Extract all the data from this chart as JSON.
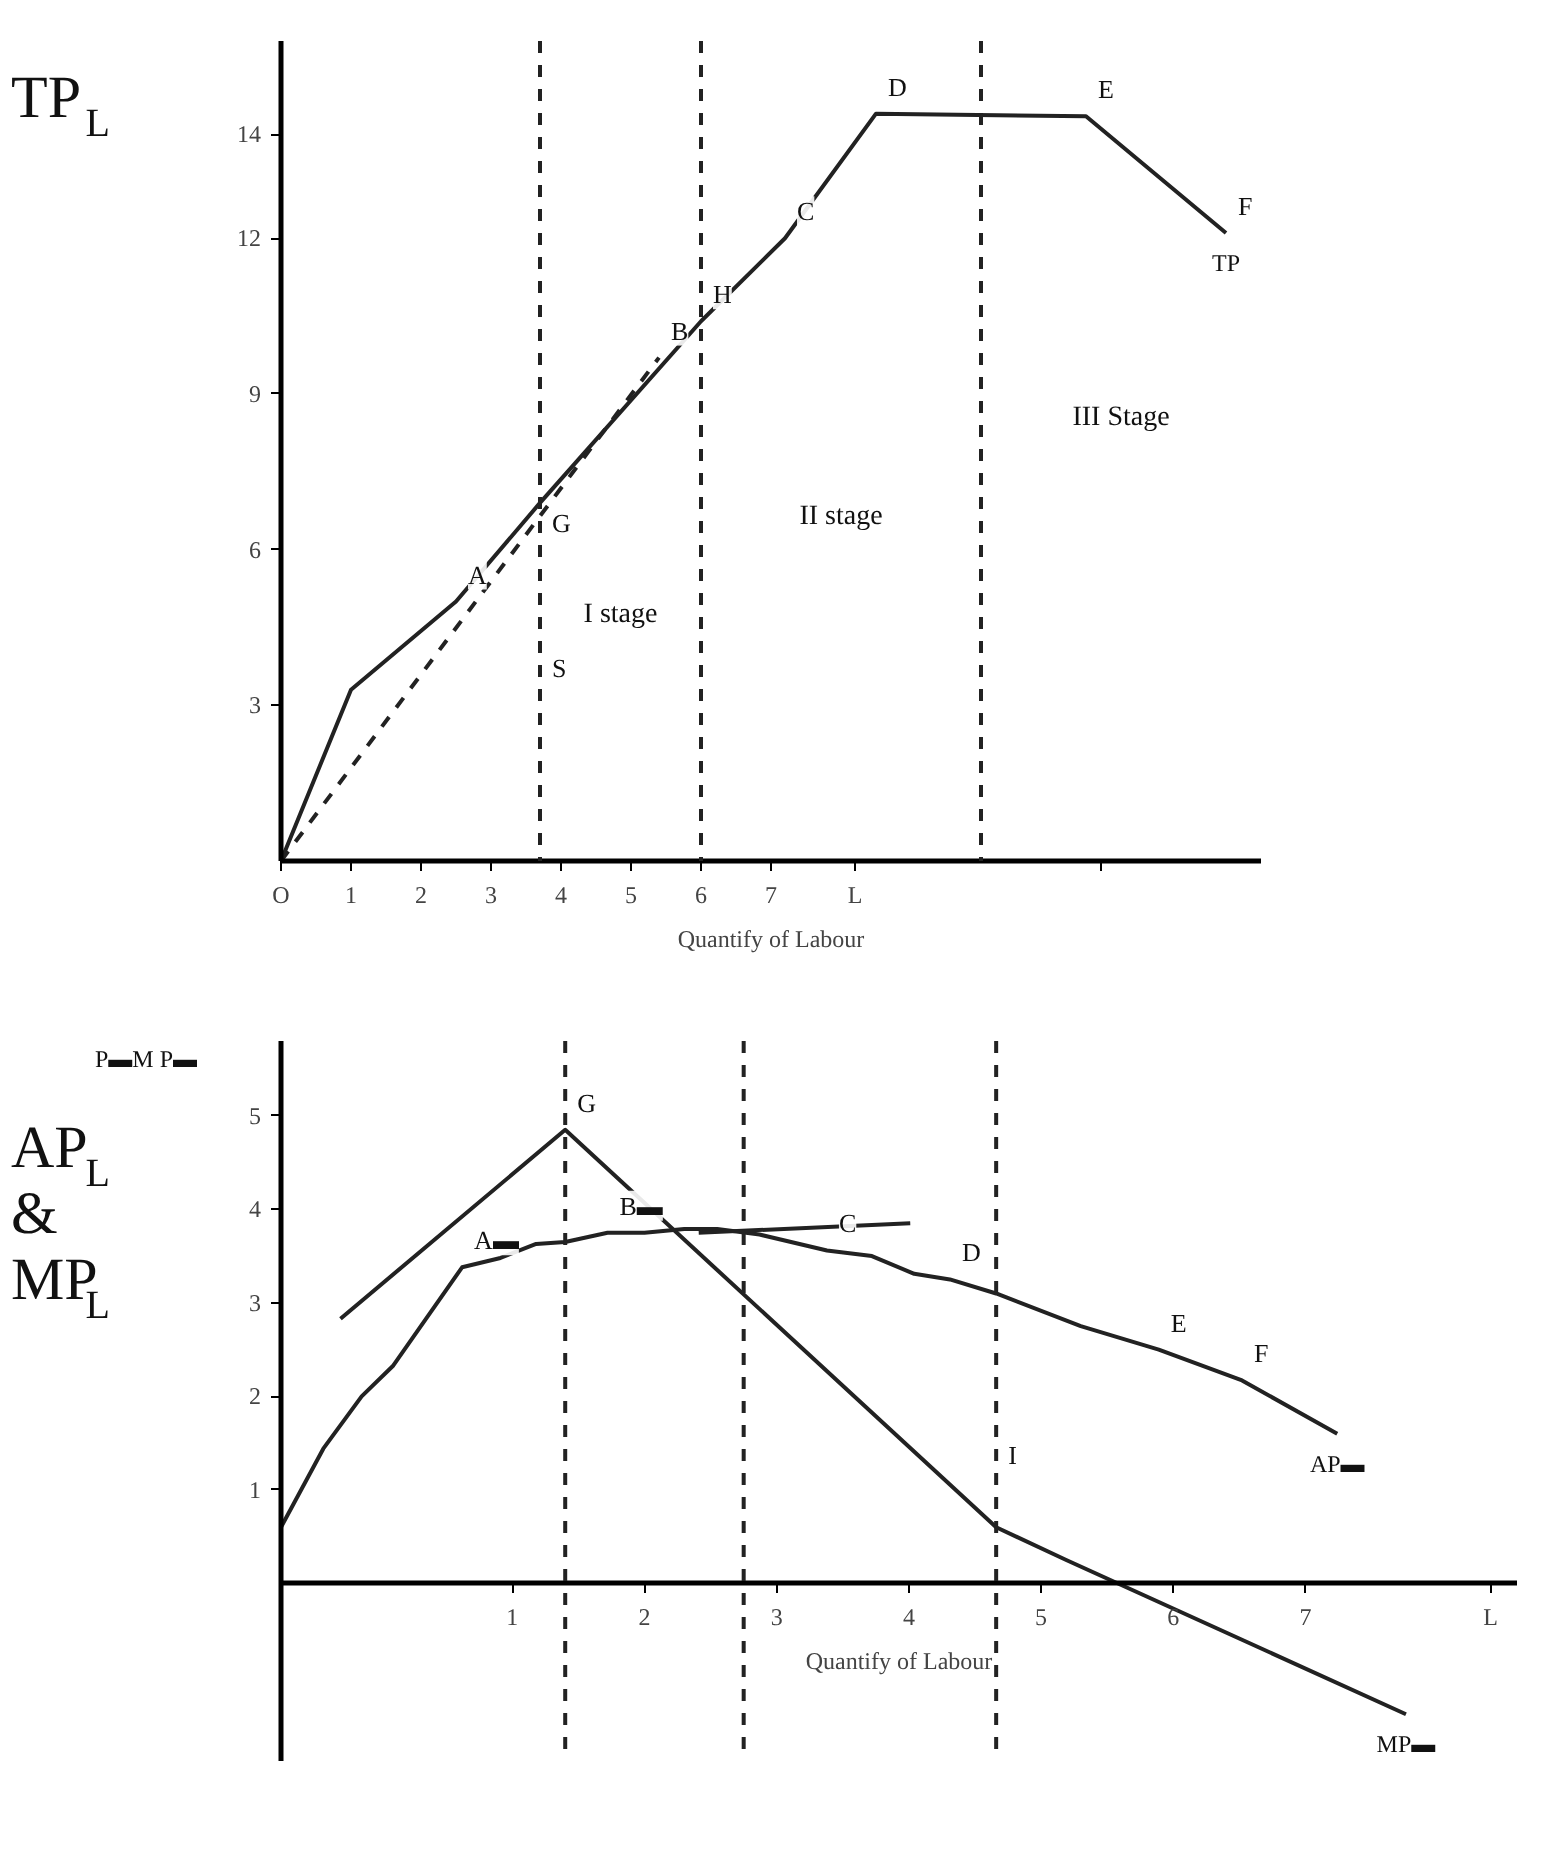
{
  "chart_data": [
    {
      "type": "line",
      "xlabel": "Quantify of Labour",
      "ylabel": "TP$_{L}$",
      "xlim": [
        0,
        14
      ],
      "ylim": [
        0,
        15.8
      ],
      "xticks": [
        {
          "value": 0,
          "label": "O"
        },
        1,
        2,
        3,
        4,
        5,
        6,
        7,
        {
          "value": 8.2,
          "label": "L"
        },
        {
          "value": 11.7,
          "label": null
        }
      ],
      "yticks": [
        3,
        6,
        9,
        12,
        14
      ],
      "series": [
        {
          "name": "TP",
          "color": "#222222",
          "x": [
            0,
            1.0,
            2.5,
            3.7,
            6.0,
            7.2,
            8.5,
            11.5,
            13.5
          ],
          "values": [
            0,
            3.3,
            5.0,
            6.9,
            10.4,
            12.0,
            14.4,
            14.35,
            12.1
          ]
        },
        {
          "color": "#222222",
          "line_style": "dashed",
          "x": [
            0,
            5.4
          ],
          "values": [
            0,
            9.7
          ]
        }
      ],
      "ref_lines": [
        {
          "axis": "x",
          "value": 3.7,
          "line_style": "dashed",
          "color": "#222222"
        },
        {
          "axis": "x",
          "value": 6.0,
          "line_style": "dashed",
          "color": "#222222"
        },
        {
          "axis": "x",
          "value": 10.0,
          "line_style": "dashed",
          "color": "#222222"
        }
      ],
      "annotations": [
        {
          "text": "A",
          "x": 2.5,
          "y": 5.0
        },
        {
          "text": "G",
          "x": 3.7,
          "y": 6.0
        },
        {
          "text": "S",
          "x": 3.7,
          "y": 3.2
        },
        {
          "text": "H",
          "x": 6.0,
          "y": 10.4
        },
        {
          "text": "B",
          "x": 5.4,
          "y": 9.7
        },
        {
          "text": "C",
          "x": 7.2,
          "y": 12.0
        },
        {
          "text": "D",
          "x": 8.5,
          "y": 14.4
        },
        {
          "text": "E",
          "x": 11.5,
          "y": 14.35
        },
        {
          "text": "F",
          "x": 13.5,
          "y": 12.1
        },
        "I stage",
        "II stage",
        "III Stage"
      ]
    },
    {
      "type": "line",
      "xlabel": "Quantify of Labour",
      "ylabel": "AP$_{L}$\n&\nMP$_{L}$",
      "xlim": [
        -0.75,
        8.6
      ],
      "ylim": [
        -1.9,
        5.8
      ],
      "xticks": [
        1,
        2,
        3,
        4,
        5,
        6,
        7,
        {
          "value": 8.4,
          "label": "L"
        }
      ],
      "yticks": [
        1,
        2,
        3,
        4,
        5
      ],
      "series": [
        {
          "name": "MP▬",
          "color": "#222222",
          "x": [
            -0.3,
            1.4,
            4.66,
            5.19,
            7.76
          ],
          "values": [
            2.83,
            4.85,
            0.6,
            0.25,
            -1.4
          ]
        },
        {
          "name": "AP▬",
          "color": "#222222",
          "x": [
            -0.75,
            -0.43,
            -0.14,
            0.1,
            0.62,
            0.91,
            1.18,
            1.4,
            1.72,
            2.0,
            2.3,
            2.55,
            2.87,
            3.38,
            3.72,
            4.04,
            4.31,
            4.66,
            5.3,
            5.89,
            6.52,
            7.24
          ],
          "values": [
            0.6,
            1.44,
            2.0,
            2.33,
            3.38,
            3.48,
            3.63,
            3.65,
            3.75,
            3.75,
            3.79,
            3.79,
            3.73,
            3.56,
            3.5,
            3.31,
            3.25,
            3.1,
            2.75,
            2.5,
            2.17,
            1.6
          ]
        },
        {
          "color": "#222222",
          "x": [
            2.41,
            4.01
          ],
          "values": [
            3.75,
            3.85
          ]
        }
      ],
      "ref_lines": [
        {
          "axis": "x",
          "value": 1.4,
          "line_style": "dashed",
          "color": "#222222"
        },
        {
          "axis": "x",
          "value": 2.75,
          "line_style": "dashed",
          "color": "#222222"
        },
        {
          "axis": "x",
          "value": 4.66,
          "line_style": "dashed",
          "color": "#222222"
        }
      ],
      "title": "P▬M P▬",
      "annotations": [
        {
          "text": "G",
          "x": 1.4,
          "y": 4.85
        },
        {
          "text": "A▬",
          "x": 0.62,
          "y": 3.38
        },
        {
          "text": "B▬",
          "x": 1.72,
          "y": 3.75
        },
        {
          "text": "C",
          "x": 3.38,
          "y": 3.56
        },
        {
          "text": "D",
          "x": 4.31,
          "y": 3.25
        },
        {
          "text": "E",
          "x": 5.89,
          "y": 2.5
        },
        {
          "text": "F",
          "x": 6.52,
          "y": 2.17
        },
        {
          "text": "I",
          "x": 4.66,
          "y": 1.08
        }
      ]
    }
  ]
}
